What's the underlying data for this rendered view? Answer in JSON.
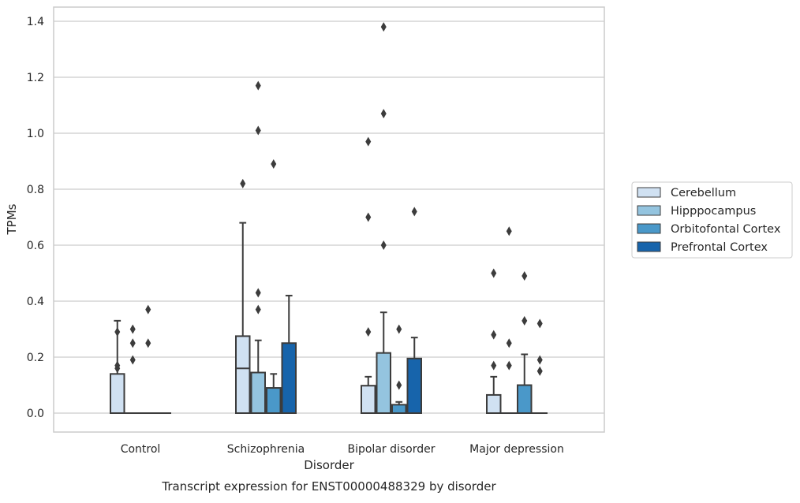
{
  "chart_data": {
    "type": "box",
    "caption": "Transcript expression for ENST00000488329 by disorder",
    "xlabel": "Disorder",
    "ylabel": "TPMs",
    "ylim": [
      -0.065,
      1.45
    ],
    "yticks": [
      0.0,
      0.2,
      0.4,
      0.6,
      0.8,
      1.0,
      1.2,
      1.4
    ],
    "ytick_labels": [
      "0.0",
      "0.2",
      "0.4",
      "0.6",
      "0.8",
      "1.0",
      "1.2",
      "1.4"
    ],
    "grid": "horizontal",
    "legend_position": "right",
    "categories": [
      "Control",
      "Schizophrenia",
      "Bipolar disorder",
      "Major depression"
    ],
    "series": [
      {
        "name": "Cerebellum",
        "color": "#d0e1f2",
        "boxes": [
          {
            "q1": 0.0,
            "median": 0.0,
            "q3": 0.14,
            "whisker_low": 0.0,
            "whisker_high": 0.33,
            "outliers": [
              0.29,
              0.17,
              0.16
            ]
          },
          {
            "q1": 0.0,
            "median": 0.16,
            "q3": 0.275,
            "whisker_low": 0.0,
            "whisker_high": 0.68,
            "outliers": [
              0.82
            ]
          },
          {
            "q1": 0.0,
            "median": 0.0,
            "q3": 0.098,
            "whisker_low": 0.0,
            "whisker_high": 0.13,
            "outliers": [
              0.29,
              0.7,
              0.97
            ]
          },
          {
            "q1": 0.0,
            "median": 0.0,
            "q3": 0.065,
            "whisker_low": 0.0,
            "whisker_high": 0.13,
            "outliers": [
              0.17,
              0.28,
              0.5
            ]
          }
        ]
      },
      {
        "name": "Hipppocampus",
        "color": "#94c4df",
        "boxes": [
          {
            "q1": 0.0,
            "median": 0.0,
            "q3": 0.0,
            "whisker_low": 0.0,
            "whisker_high": 0.0,
            "outliers": [
              0.3,
              0.25,
              0.19
            ]
          },
          {
            "q1": 0.0,
            "median": 0.0,
            "q3": 0.145,
            "whisker_low": 0.0,
            "whisker_high": 0.26,
            "outliers": [
              0.37,
              0.43,
              1.01,
              1.17
            ]
          },
          {
            "q1": 0.0,
            "median": 0.0,
            "q3": 0.215,
            "whisker_low": 0.0,
            "whisker_high": 0.36,
            "outliers": [
              0.6,
              1.07,
              1.38
            ]
          },
          {
            "q1": 0.0,
            "median": 0.0,
            "q3": 0.0,
            "whisker_low": 0.0,
            "whisker_high": 0.0,
            "outliers": [
              0.17,
              0.25,
              0.65
            ]
          }
        ]
      },
      {
        "name": "Orbitofontal Cortex",
        "color": "#4a98c9",
        "boxes": [
          {
            "q1": 0.0,
            "median": 0.0,
            "q3": 0.0,
            "whisker_low": 0.0,
            "whisker_high": 0.0,
            "outliers": [
              0.37,
              0.25
            ]
          },
          {
            "q1": 0.0,
            "median": 0.0,
            "q3": 0.09,
            "whisker_low": 0.0,
            "whisker_high": 0.14,
            "outliers": [
              0.89
            ]
          },
          {
            "q1": 0.0,
            "median": 0.0,
            "q3": 0.03,
            "whisker_low": 0.0,
            "whisker_high": 0.04,
            "outliers": [
              0.1,
              0.3
            ]
          },
          {
            "q1": 0.0,
            "median": 0.0,
            "q3": 0.1,
            "whisker_low": 0.0,
            "whisker_high": 0.21,
            "outliers": [
              0.33,
              0.49
            ]
          }
        ]
      },
      {
        "name": "Prefrontal Cortex",
        "color": "#1764ab",
        "boxes": [
          {
            "q1": 0.0,
            "median": 0.0,
            "q3": 0.0,
            "whisker_low": 0.0,
            "whisker_high": 0.0,
            "outliers": []
          },
          {
            "q1": 0.0,
            "median": 0.0,
            "q3": 0.25,
            "whisker_low": 0.0,
            "whisker_high": 0.42,
            "outliers": []
          },
          {
            "q1": 0.0,
            "median": 0.0,
            "q3": 0.195,
            "whisker_low": 0.0,
            "whisker_high": 0.27,
            "outliers": [
              0.72
            ]
          },
          {
            "q1": 0.0,
            "median": 0.0,
            "q3": 0.0,
            "whisker_low": 0.0,
            "whisker_high": 0.0,
            "outliers": [
              0.32,
              0.19,
              0.15
            ]
          }
        ]
      }
    ]
  }
}
